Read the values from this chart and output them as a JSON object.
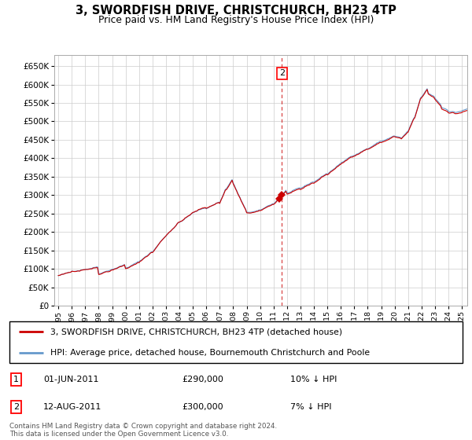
{
  "title": "3, SWORDFISH DRIVE, CHRISTCHURCH, BH23 4TP",
  "subtitle": "Price paid vs. HM Land Registry's House Price Index (HPI)",
  "hpi_color": "#6699cc",
  "sale_line_color": "#cc0000",
  "grid_color": "#cccccc",
  "background_color": "#ffffff",
  "sale1_price": 290000,
  "sale2_price": 300000,
  "sale1_year": 2011.417,
  "sale2_year": 2011.625,
  "legend_entry1": "3, SWORDFISH DRIVE, CHRISTCHURCH, BH23 4TP (detached house)",
  "legend_entry2": "HPI: Average price, detached house, Bournemouth Christchurch and Poole",
  "annotation1_label": "01-JUN-2011",
  "annotation1_price": "£290,000",
  "annotation1_hpi": "10% ↓ HPI",
  "annotation2_label": "12-AUG-2011",
  "annotation2_price": "£300,000",
  "annotation2_hpi": "7% ↓ HPI",
  "footer": "Contains HM Land Registry data © Crown copyright and database right 2024.\nThis data is licensed under the Open Government Licence v3.0."
}
